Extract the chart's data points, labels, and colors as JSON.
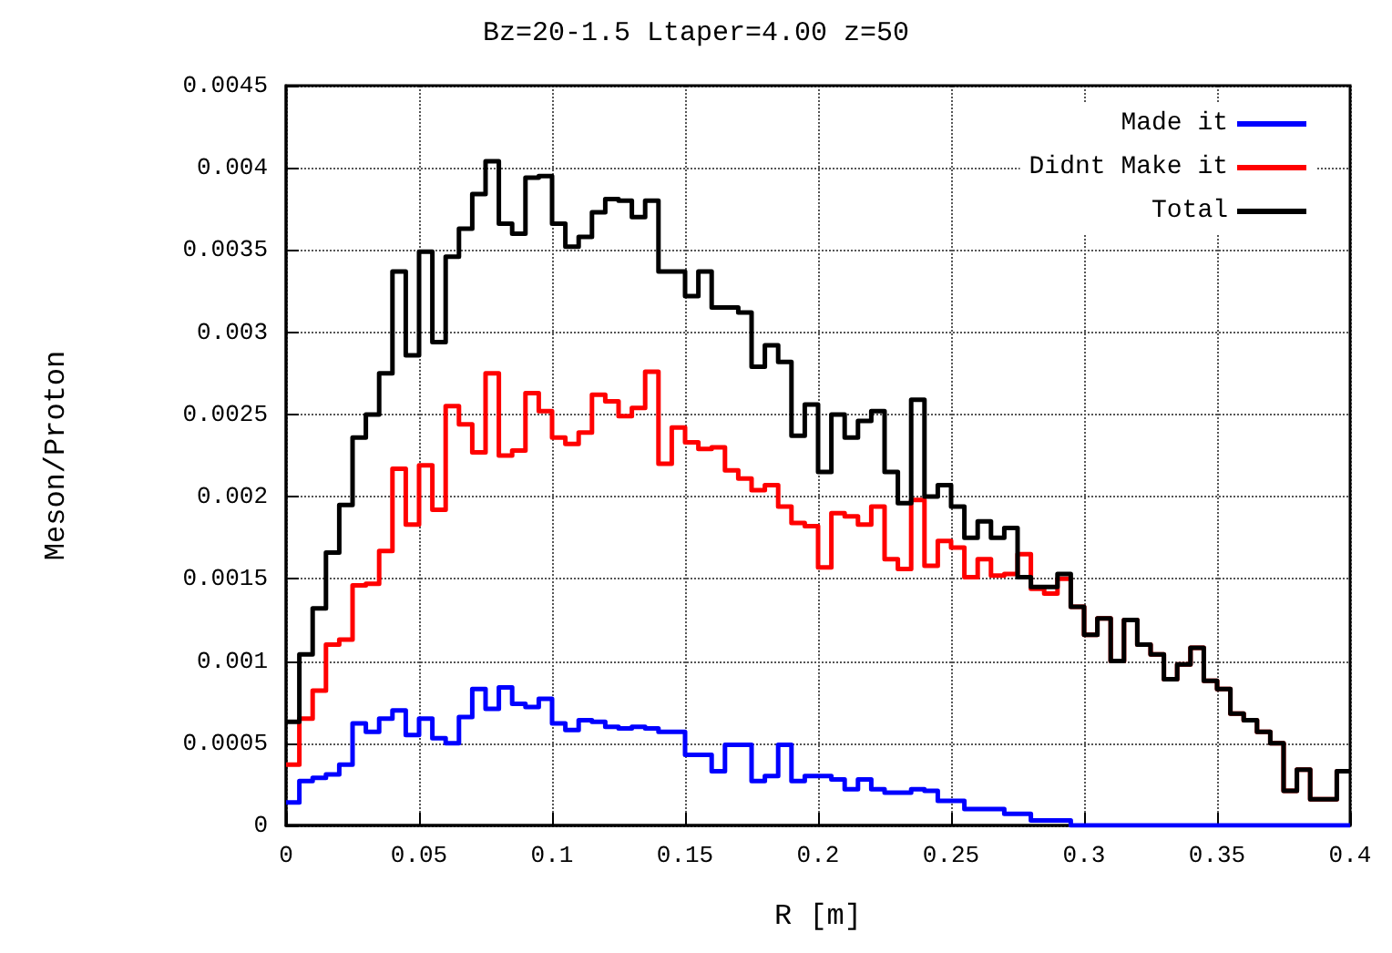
{
  "chart_data": {
    "type": "histogram",
    "title": "Bz=20-1.5 Ltaper=4.00 z=50",
    "xlabel": "R [m]",
    "ylabel": "Meson/Proton",
    "bins": [
      0,
      0.005,
      0.01,
      0.015,
      0.02,
      0.025,
      0.03,
      0.035,
      0.04,
      0.045,
      0.05,
      0.055,
      0.06,
      0.065,
      0.07,
      0.075,
      0.08,
      0.085,
      0.09,
      0.095,
      0.1,
      0.105,
      0.11,
      0.115,
      0.12,
      0.125,
      0.13,
      0.135,
      0.14,
      0.145,
      0.15,
      0.155,
      0.16,
      0.165,
      0.17,
      0.175,
      0.18,
      0.185,
      0.19,
      0.195,
      0.2,
      0.205,
      0.21,
      0.215,
      0.22,
      0.225,
      0.23,
      0.235,
      0.24,
      0.245,
      0.25,
      0.255,
      0.26,
      0.265,
      0.27,
      0.275,
      0.28,
      0.285,
      0.29,
      0.295,
      0.3,
      0.305,
      0.31,
      0.315,
      0.32,
      0.325,
      0.33,
      0.335,
      0.34,
      0.345,
      0.35,
      0.355,
      0.36,
      0.365,
      0.37,
      0.375,
      0.38,
      0.385,
      0.39,
      0.395,
      0.4
    ],
    "series": [
      {
        "name": "Made it",
        "color": "#0000ff",
        "values": [
          0.00014,
          0.00027,
          0.00029,
          0.00031,
          0.00037,
          0.00062,
          0.00057,
          0.00065,
          0.0007,
          0.00055,
          0.00065,
          0.00053,
          0.0005,
          0.00066,
          0.00083,
          0.00071,
          0.00084,
          0.00074,
          0.00072,
          0.00077,
          0.00062,
          0.00058,
          0.00064,
          0.00063,
          0.0006,
          0.00059,
          0.0006,
          0.00059,
          0.00057,
          0.00057,
          0.00043,
          0.00043,
          0.00033,
          0.00049,
          0.00049,
          0.00027,
          0.0003,
          0.00049,
          0.00027,
          0.0003,
          0.0003,
          0.00028,
          0.00022,
          0.00028,
          0.00022,
          0.0002,
          0.0002,
          0.00022,
          0.00021,
          0.00015,
          0.00015,
          0.0001,
          0.0001,
          0.0001,
          7e-05,
          7e-05,
          3e-05,
          3e-05,
          3e-05,
          0,
          0,
          0,
          0,
          0,
          0,
          0,
          0,
          0,
          0,
          0,
          0,
          0,
          0,
          0,
          0,
          0,
          0,
          0,
          0,
          0
        ]
      },
      {
        "name": "Didnt Make it",
        "color": "#ff0000",
        "values": [
          0.00037,
          0.00065,
          0.00082,
          0.0011,
          0.00113,
          0.00146,
          0.00147,
          0.00167,
          0.00217,
          0.00183,
          0.00219,
          0.00192,
          0.00255,
          0.00244,
          0.00227,
          0.00275,
          0.00225,
          0.00228,
          0.00263,
          0.00252,
          0.00236,
          0.00232,
          0.00239,
          0.00262,
          0.00258,
          0.00249,
          0.00254,
          0.00276,
          0.0022,
          0.00242,
          0.00233,
          0.00229,
          0.0023,
          0.00216,
          0.00211,
          0.00204,
          0.00207,
          0.00194,
          0.00184,
          0.00182,
          0.00157,
          0.0019,
          0.00188,
          0.00183,
          0.00194,
          0.00162,
          0.00156,
          0.00198,
          0.00158,
          0.00173,
          0.00169,
          0.00151,
          0.00162,
          0.00152,
          0.00153,
          0.00165,
          0.00144,
          0.00141,
          0.0015,
          0.00133,
          0.00116,
          0.00126,
          0.001,
          0.00125,
          0.0011,
          0.00104,
          0.00089,
          0.00098,
          0.00108,
          0.00088,
          0.00083,
          0.00068,
          0.00064,
          0.00057,
          0.0005,
          0.00021,
          0.00034,
          0.00016,
          0.00016,
          0.00033
        ]
      },
      {
        "name": "Total",
        "color": "#000000",
        "values": [
          0.00063,
          0.00104,
          0.00132,
          0.00166,
          0.00195,
          0.00236,
          0.0025,
          0.00275,
          0.00337,
          0.00286,
          0.00349,
          0.00294,
          0.00346,
          0.00363,
          0.00384,
          0.00404,
          0.00366,
          0.0036,
          0.00394,
          0.00395,
          0.00366,
          0.00352,
          0.00358,
          0.00373,
          0.00381,
          0.0038,
          0.0037,
          0.0038,
          0.00337,
          0.00337,
          0.00322,
          0.00337,
          0.00315,
          0.00315,
          0.00312,
          0.00279,
          0.00292,
          0.00282,
          0.00237,
          0.00256,
          0.00215,
          0.0025,
          0.00236,
          0.00246,
          0.00252,
          0.00215,
          0.00196,
          0.00259,
          0.002,
          0.00207,
          0.00194,
          0.00175,
          0.00185,
          0.00175,
          0.00181,
          0.00151,
          0.00145,
          0.00145,
          0.00153,
          0.00133,
          0.00116,
          0.00126,
          0.001,
          0.00125,
          0.0011,
          0.00104,
          0.00089,
          0.00098,
          0.00108,
          0.00088,
          0.00083,
          0.00068,
          0.00064,
          0.00057,
          0.0005,
          0.00021,
          0.00034,
          0.00016,
          0.00016,
          0.00033
        ]
      }
    ],
    "xlim": [
      0,
      0.4
    ],
    "xticks": [
      0,
      0.05,
      0.1,
      0.15,
      0.2,
      0.25,
      0.3,
      0.35,
      0.4
    ],
    "ylim": [
      0,
      0.0045
    ],
    "yticks": [
      0,
      0.0005,
      0.001,
      0.0015,
      0.002,
      0.0025,
      0.003,
      0.0035,
      0.004,
      0.0045
    ],
    "grid": true,
    "legend": "top right",
    "line_style": "solid",
    "marker": "none"
  }
}
